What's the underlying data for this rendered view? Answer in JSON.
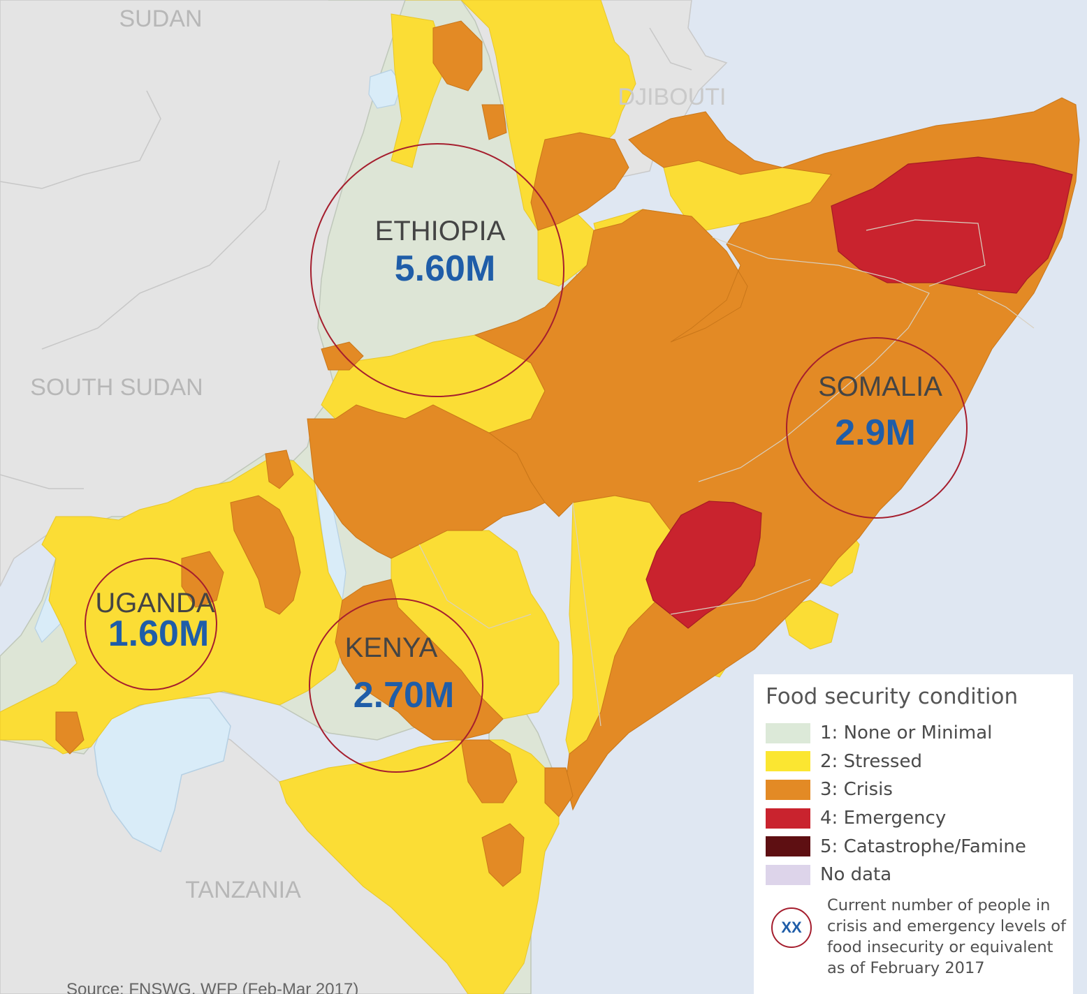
{
  "map": {
    "countries": {
      "sudan": "SUDAN",
      "djibouti": "DJIBOUTI",
      "south_sudan": "SOUTH SUDAN",
      "tanzania": "TANZANIA"
    },
    "callouts": {
      "ethiopia": {
        "name": "ETHIOPIA",
        "value": "5.60M"
      },
      "somalia": {
        "name": "SOMALIA",
        "value": "2.9M"
      },
      "uganda": {
        "name": "UGANDA",
        "value": "1.60M"
      },
      "kenya": {
        "name": "KENYA",
        "value": "2.70M"
      }
    },
    "colors": {
      "water": "#dfe7f2",
      "other_land": "#e4e4e4",
      "lake": "#d9ecf8",
      "none_minimal": "#dde5d6",
      "stressed": "#fbdd35",
      "crisis": "#e38a25",
      "emergency": "#c9232e",
      "famine": "#5e0f12",
      "no_data": "#ddd4ea",
      "callout_ring": "#a51e2e",
      "callout_value": "#1f5da8"
    }
  },
  "legend": {
    "title": "Food security condition",
    "items": [
      {
        "label": "1: None or Minimal",
        "color": "#dce9d8"
      },
      {
        "label": "2: Stressed",
        "color": "#fbe631"
      },
      {
        "label": "3: Crisis",
        "color": "#e38a25"
      },
      {
        "label": "4: Emergency",
        "color": "#c9232e"
      },
      {
        "label": "5: Catastrophe/Famine",
        "color": "#5e0f12"
      },
      {
        "label": "No data",
        "color": "#ddd4ea"
      }
    ],
    "note_icon": "XX",
    "note": [
      "Current number of people in",
      "crisis and emergency levels of",
      "food insecurity or equivalent",
      "as of February 2017"
    ]
  },
  "source": "Source: FNSWG, WFP (Feb-Mar 2017)"
}
